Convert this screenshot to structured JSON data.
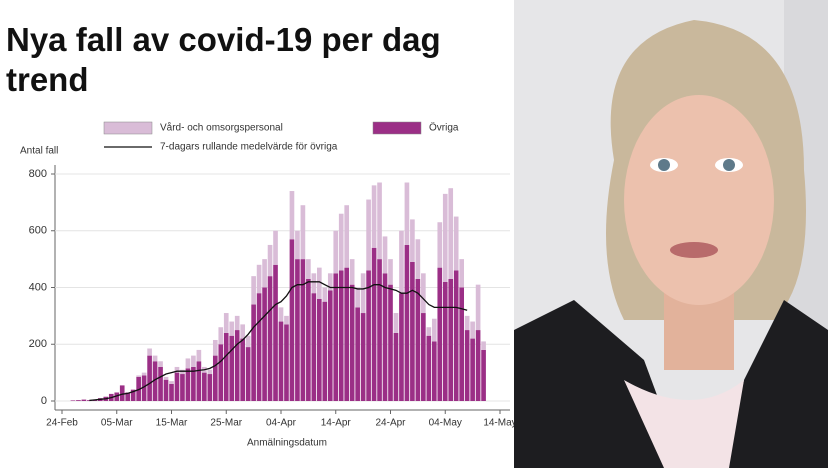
{
  "chart_data": {
    "type": "bar",
    "stacked": true,
    "title": "Nya fall av covid-19 per dag trend",
    "y_label": "Antal fall",
    "x_label": "Anmälningsdatum",
    "x": [
      "26-Feb",
      "27-Feb",
      "28-Feb",
      "29-Feb",
      "01-Mar",
      "02-Mar",
      "03-Mar",
      "04-Mar",
      "05-Mar",
      "06-Mar",
      "07-Mar",
      "08-Mar",
      "09-Mar",
      "10-Mar",
      "11-Mar",
      "12-Mar",
      "13-Mar",
      "14-Mar",
      "15-Mar",
      "16-Mar",
      "17-Mar",
      "18-Mar",
      "19-Mar",
      "20-Mar",
      "21-Mar",
      "22-Mar",
      "23-Mar",
      "24-Mar",
      "25-Mar",
      "26-Mar",
      "27-Mar",
      "28-Mar",
      "29-Mar",
      "30-Mar",
      "31-Mar",
      "01-Apr",
      "02-Apr",
      "03-Apr",
      "04-Apr",
      "05-Apr",
      "06-Apr",
      "07-Apr",
      "08-Apr",
      "09-Apr",
      "10-Apr",
      "11-Apr",
      "12-Apr",
      "13-Apr",
      "14-Apr",
      "15-Apr",
      "16-Apr",
      "17-Apr",
      "18-Apr",
      "19-Apr",
      "20-Apr",
      "21-Apr",
      "22-Apr",
      "23-Apr",
      "24-Apr",
      "25-Apr",
      "26-Apr",
      "27-Apr",
      "28-Apr",
      "29-Apr",
      "30-Apr",
      "01-May",
      "02-May",
      "03-May",
      "04-May",
      "05-May",
      "06-May",
      "07-May",
      "08-May",
      "09-May",
      "10-May",
      "11-May"
    ],
    "series": [
      {
        "name": "Övriga",
        "color": "#9b2f86",
        "values": [
          2,
          3,
          5,
          3,
          5,
          10,
          15,
          25,
          30,
          55,
          30,
          40,
          85,
          90,
          160,
          140,
          120,
          75,
          60,
          100,
          95,
          115,
          120,
          140,
          100,
          95,
          160,
          200,
          240,
          230,
          250,
          220,
          190,
          340,
          380,
          400,
          440,
          480,
          280,
          270,
          570,
          500,
          500,
          430,
          380,
          360,
          350,
          390,
          450,
          460,
          470,
          410,
          330,
          310,
          460,
          540,
          500,
          450,
          410,
          240,
          380,
          550,
          490,
          430,
          310,
          230,
          210,
          470,
          420,
          430,
          460,
          400,
          250,
          220,
          250,
          180
        ]
      },
      {
        "name": "Vård- och omsorgspersonal",
        "color": "#d9bcd7",
        "values": [
          0,
          0,
          0,
          0,
          0,
          0,
          0,
          0,
          0,
          0,
          0,
          0,
          5,
          10,
          25,
          20,
          20,
          10,
          10,
          20,
          15,
          35,
          40,
          40,
          20,
          15,
          55,
          60,
          70,
          50,
          50,
          50,
          40,
          100,
          100,
          100,
          110,
          120,
          50,
          30,
          170,
          100,
          190,
          70,
          70,
          110,
          50,
          60,
          150,
          200,
          220,
          90,
          70,
          140,
          250,
          220,
          270,
          130,
          90,
          70,
          220,
          220,
          150,
          140,
          140,
          30,
          80,
          160,
          310,
          320,
          190,
          100,
          50,
          60,
          160,
          30
        ]
      },
      {
        "name": "7-dagars rullande medelvärde för övriga",
        "type": "line",
        "color": "#111111",
        "values": [
          null,
          null,
          null,
          2,
          4,
          6,
          8,
          12,
          18,
          24,
          27,
          33,
          40,
          50,
          62,
          75,
          85,
          95,
          100,
          105,
          105,
          105,
          105,
          108,
          110,
          115,
          125,
          140,
          160,
          180,
          200,
          215,
          235,
          260,
          280,
          300,
          320,
          340,
          350,
          370,
          400,
          410,
          410,
          420,
          420,
          420,
          410,
          400,
          400,
          400,
          400,
          400,
          395,
          395,
          400,
          410,
          410,
          400,
          395,
          390,
          380,
          380,
          390,
          380,
          360,
          340,
          330,
          330,
          330,
          330,
          330,
          325,
          320,
          null,
          null,
          null
        ]
      }
    ],
    "xlim": [
      "24-Feb",
      "14-May"
    ],
    "xticks": [
      "24-Feb",
      "05-Mar",
      "15-Mar",
      "25-Mar",
      "04-Apr",
      "14-Apr",
      "24-Apr",
      "04-May",
      "14-May"
    ],
    "ylim": [
      0,
      800
    ],
    "yticks": [
      0,
      200,
      400,
      600,
      800
    ],
    "grid": true
  }
}
